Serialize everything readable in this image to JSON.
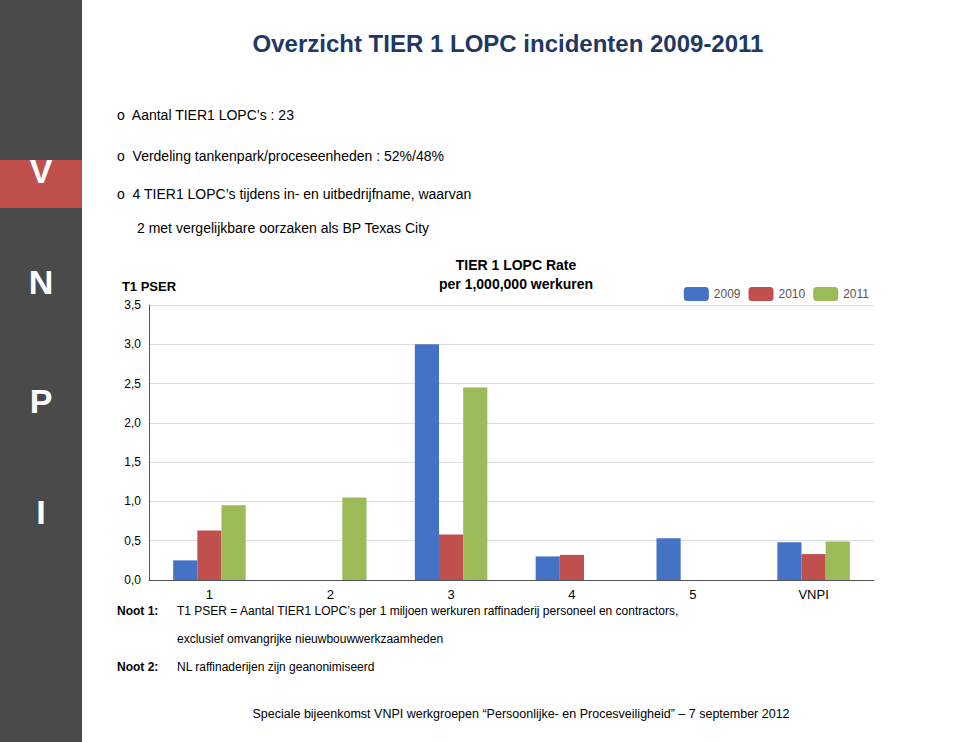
{
  "chart_data": {
    "type": "bar",
    "title": "Overzicht TIER 1 LOPC incidenten 2009-2011",
    "subtitle": "TIER 1 LOPC Rate\nper 1,000,000 werkuren",
    "ylabel": "T1 PSER",
    "sidebar_text": [
      "V",
      "N",
      "P",
      "I"
    ],
    "bullets": [
      "o  Aantal TIER1 LOPC’s : 23",
      "o  Verdeling tankenpark/proceseenheden : 52%/48%",
      "o  4 TIER1 LOPC’s tijdens in- en uitbedrijfname, waarvan",
      "2 met vergelijkbare oorzaken als BP Texas City"
    ],
    "notes": [
      {
        "label": "Noot 1:",
        "text": [
          "T1 PSER = Aantal TIER1 LOPC’s per 1 miljoen werkuren raffinaderij personeel en contractors,",
          "exclusief omvangrijke nieuwbouwwerkzaamheden"
        ]
      },
      {
        "label": "Noot 2:",
        "text": [
          "NL raffinaderijen zijn geanonimiseerd"
        ]
      }
    ],
    "footer": "Speciale bijeenkomst VNPI werkgroepen “Persoonlijke- en Procesveiligheid” – 7 september 2012",
    "categories": [
      "1",
      "2",
      "3",
      "4",
      "5",
      "VNPI"
    ],
    "series": [
      {
        "name": "2009",
        "color": "#4472C4",
        "values": [
          0.25,
          0.0,
          3.0,
          0.3,
          0.53,
          0.48
        ]
      },
      {
        "name": "2010",
        "color": "#C0504D",
        "values": [
          0.63,
          0.0,
          0.58,
          0.32,
          0.0,
          0.33
        ]
      },
      {
        "name": "2011",
        "color": "#9BBB59",
        "values": [
          0.95,
          1.05,
          2.45,
          0.0,
          0.0,
          0.49
        ]
      }
    ],
    "ylim": [
      0.0,
      3.5
    ],
    "yticks": [
      {
        "value": 0.0,
        "label": "0,0"
      },
      {
        "value": 0.5,
        "label": "0,5"
      },
      {
        "value": 1.0,
        "label": "1,0"
      },
      {
        "value": 1.5,
        "label": "1,5"
      },
      {
        "value": 2.0,
        "label": "2,0"
      },
      {
        "value": 2.5,
        "label": "2,5"
      },
      {
        "value": 3.0,
        "label": "3,0"
      },
      {
        "value": 3.5,
        "label": "3,5"
      }
    ],
    "grid": true,
    "legend": "upper right"
  }
}
